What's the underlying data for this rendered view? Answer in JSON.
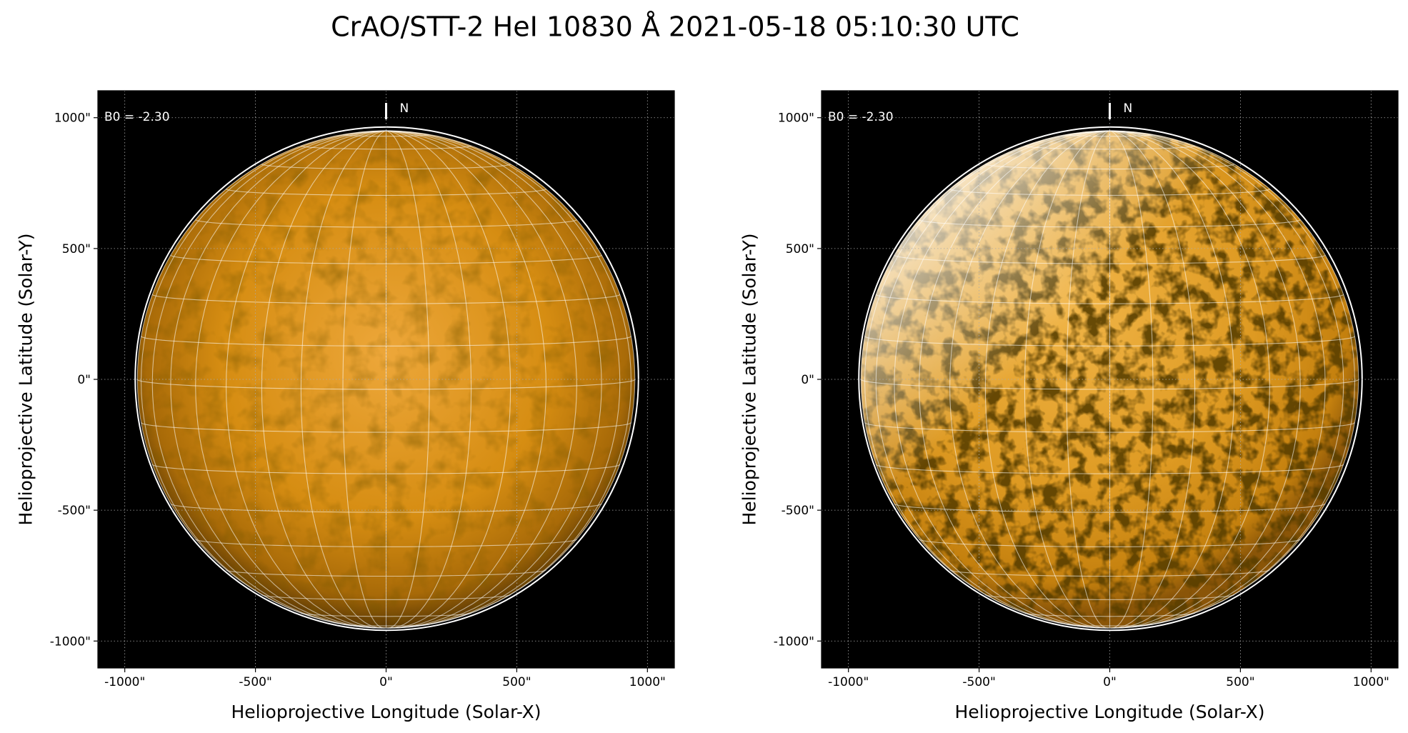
{
  "title": "CrAO/STT-2 HeI 10830 Å 2021-05-18 05:10:30 UTC",
  "chart_data": [
    {
      "type": "image",
      "xlabel": "Helioprojective Longitude (Solar-X)",
      "ylabel": "Helioprojective Latitude (Solar-Y)",
      "annotation": "B0 = -2.30",
      "north_label": "N",
      "style": "smooth",
      "xlim": [
        -1103,
        1103
      ],
      "ylim": [
        -1103,
        1103
      ],
      "grid": true,
      "xticks": [
        {
          "value": -1000,
          "label": "-1000\""
        },
        {
          "value": -500,
          "label": "-500\""
        },
        {
          "value": 0,
          "label": "0\""
        },
        {
          "value": 500,
          "label": "500\""
        },
        {
          "value": 1000,
          "label": "1000\""
        }
      ],
      "yticks": [
        {
          "value": -1000,
          "label": "-1000\""
        },
        {
          "value": -500,
          "label": "-500\""
        },
        {
          "value": 0,
          "label": "0\""
        },
        {
          "value": 500,
          "label": "500\""
        },
        {
          "value": 1000,
          "label": "1000\""
        }
      ]
    },
    {
      "type": "image",
      "xlabel": "Helioprojective Longitude (Solar-X)",
      "ylabel": "Helioprojective Latitude (Solar-Y)",
      "annotation": "B0 = -2.30",
      "north_label": "N",
      "style": "contrast",
      "xlim": [
        -1103,
        1103
      ],
      "ylim": [
        -1103,
        1103
      ],
      "grid": true,
      "xticks": [
        {
          "value": -1000,
          "label": "-1000\""
        },
        {
          "value": -500,
          "label": "-500\""
        },
        {
          "value": 0,
          "label": "0\""
        },
        {
          "value": 500,
          "label": "500\""
        },
        {
          "value": 1000,
          "label": "1000\""
        }
      ],
      "yticks": [
        {
          "value": -1000,
          "label": "-1000\""
        },
        {
          "value": -500,
          "label": "-500\""
        },
        {
          "value": 0,
          "label": "0\""
        },
        {
          "value": 500,
          "label": "500\""
        },
        {
          "value": 1000,
          "label": "1000\""
        }
      ]
    }
  ]
}
